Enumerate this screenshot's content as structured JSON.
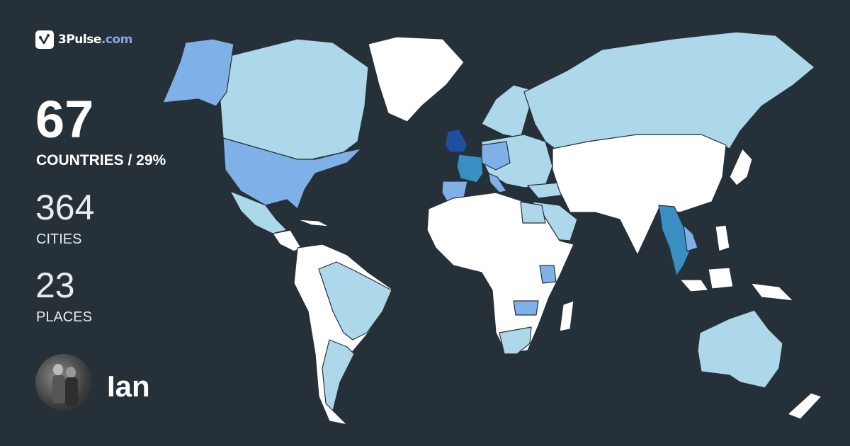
{
  "brand": {
    "name": "3Pulse",
    "tld": ".com",
    "icon": "pulse-check-icon"
  },
  "stats": {
    "countries": {
      "value": "67",
      "label": "COUNTRIES / 29%"
    },
    "cities": {
      "value": "364",
      "label": "CITIES"
    },
    "places": {
      "value": "23",
      "label": "PLACES"
    }
  },
  "user": {
    "name": "Ian",
    "avatar": "user-photo"
  },
  "colors": {
    "background": "#263038",
    "unvisited": "#ffffff",
    "level_1": "#add8ea",
    "level_2": "#7fb1e8",
    "level_3": "#3a8fc2",
    "level_4": "#1d4f9e",
    "tld_accent": "#8fa0e8"
  }
}
